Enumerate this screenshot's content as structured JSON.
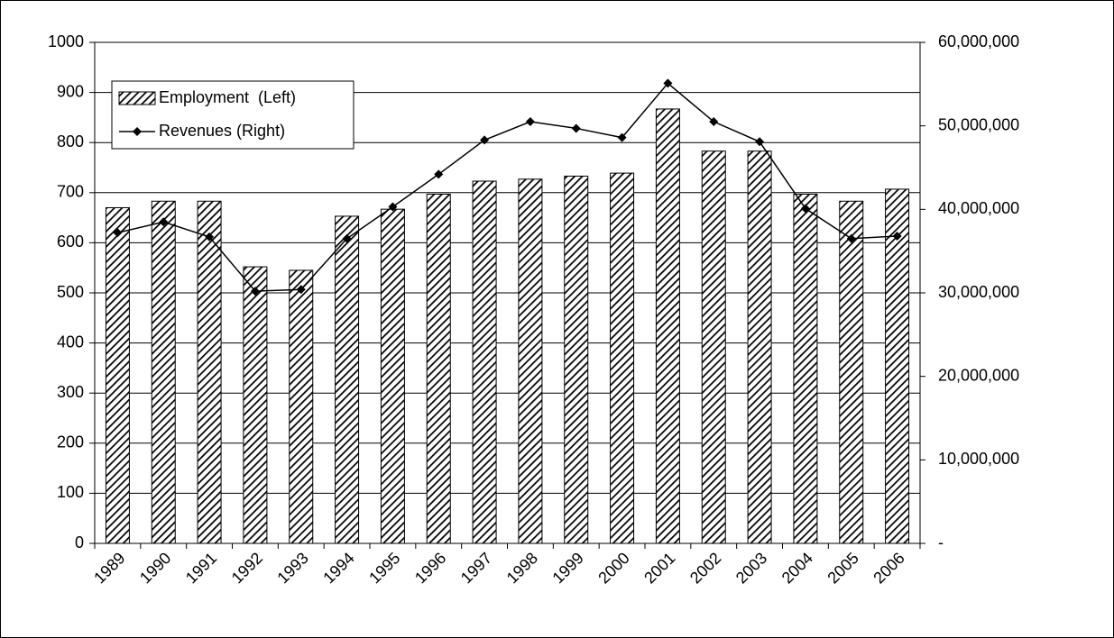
{
  "chart_data": {
    "type": "bar_line",
    "categories": [
      "1989",
      "1990",
      "1991",
      "1992",
      "1993",
      "1994",
      "1995",
      "1996",
      "1997",
      "1998",
      "1999",
      "2000",
      "2001",
      "2002",
      "2003",
      "2004",
      "2005",
      "2006"
    ],
    "series": [
      {
        "name": "Employment  (Left)",
        "type": "bar",
        "color": "#000000",
        "values": [
          670,
          683,
          683,
          552,
          545,
          653,
          667,
          697,
          723,
          727,
          733,
          739,
          867,
          783,
          783,
          697,
          683,
          707
        ]
      },
      {
        "name": "Revenues (Right)",
        "type": "line",
        "axis": "y2",
        "color": "#000000",
        "values": [
          37200000,
          38500000,
          36700000,
          30200000,
          30400000,
          36500000,
          40300000,
          44200000,
          48300000,
          50500000,
          49700000,
          48600000,
          55100000,
          50500000,
          48100000,
          40100000,
          36500000,
          36800000
        ]
      }
    ],
    "ylim": [
      0,
      1000
    ],
    "yticks": [
      0,
      100,
      200,
      300,
      400,
      500,
      600,
      700,
      800,
      900,
      1000
    ],
    "y2lim": [
      0,
      60000000
    ],
    "y2ticks": [
      {
        "value": 0,
        "label": "-"
      },
      {
        "value": 10000000,
        "label": "10,000,000"
      },
      {
        "value": 20000000,
        "label": "20,000,000"
      },
      {
        "value": 30000000,
        "label": "30,000,000"
      },
      {
        "value": 40000000,
        "label": "40,000,000"
      },
      {
        "value": 50000000,
        "label": "50,000,000"
      },
      {
        "value": 60000000,
        "label": "60,000,000"
      }
    ],
    "grid": true,
    "legend": "top-left"
  }
}
